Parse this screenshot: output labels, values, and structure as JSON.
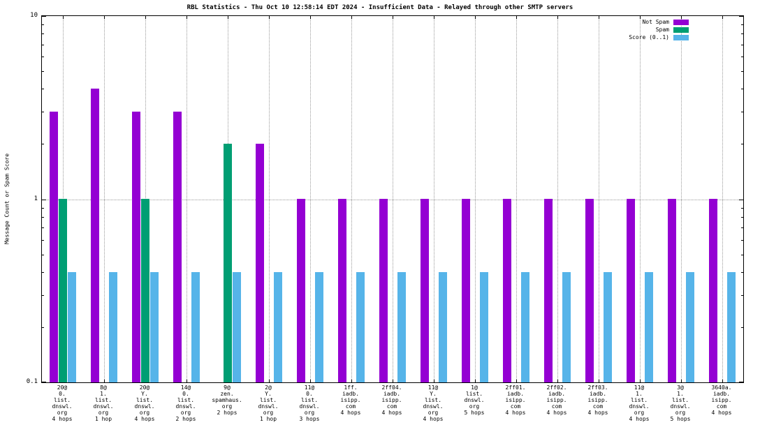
{
  "title": "RBL Statistics - Thu Oct 10 12:58:14 EDT 2024 - Insufficient Data - Relayed through other SMTP servers",
  "ylabel": "Message Count or Spam Score",
  "legend": [
    {
      "label": "Not Spam",
      "color": "#9400d3"
    },
    {
      "label": "Spam",
      "color": "#009e73"
    },
    {
      "label": "Score (0..1)",
      "color": "#56b4e9"
    }
  ],
  "chart_data": {
    "type": "bar",
    "scale": "log",
    "ylim": [
      0.1,
      10
    ],
    "yticks": {
      "top": "10",
      "mid": "1",
      "bottom": "0.1"
    },
    "grid": "dotted",
    "legend_position": "top-right",
    "categories": [
      [
        "20@",
        "0.",
        "list.",
        "dnswl.",
        "org",
        "4 hops"
      ],
      [
        "8@",
        "1.",
        "list.",
        "dnswl.",
        "org",
        "1 hop"
      ],
      [
        "20@",
        "Y.",
        "list.",
        "dnswl.",
        "org",
        "4 hops"
      ],
      [
        "14@",
        "0.",
        "list.",
        "dnswl.",
        "org",
        "2 hops"
      ],
      [
        "9@",
        "zen.",
        "spamhaus.",
        "org",
        "2 hops"
      ],
      [
        "2@",
        "Y.",
        "list.",
        "dnswl.",
        "org",
        "1 hop"
      ],
      [
        "11@",
        "0.",
        "list.",
        "dnswl.",
        "org",
        "3 hops"
      ],
      [
        "1ff.",
        "iadb.",
        "isipp.",
        "com",
        "4 hops"
      ],
      [
        "2ff04.",
        "iadb.",
        "isipp.",
        "com",
        "4 hops"
      ],
      [
        "11@",
        "Y.",
        "list.",
        "dnswl.",
        "org",
        "4 hops"
      ],
      [
        "1@",
        "list.",
        "dnswl.",
        "org",
        "5 hops"
      ],
      [
        "2ff01.",
        "iadb.",
        "isipp.",
        "com",
        "4 hops"
      ],
      [
        "2ff02.",
        "iadb.",
        "isipp.",
        "com",
        "4 hops"
      ],
      [
        "2ff03.",
        "iadb.",
        "isipp.",
        "com",
        "4 hops"
      ],
      [
        "11@",
        "1.",
        "list.",
        "dnswl.",
        "org",
        "4 hops"
      ],
      [
        "3@",
        "1.",
        "list.",
        "dnswl.",
        "org",
        "5 hops"
      ],
      [
        "3640a.",
        "iadb.",
        "isipp.",
        "com",
        "4 hops"
      ]
    ],
    "series": [
      {
        "name": "Not Spam",
        "color": "#9400d3",
        "values": [
          3,
          4,
          3,
          3,
          null,
          2,
          1,
          1,
          1,
          1,
          1,
          1,
          1,
          1,
          1,
          1,
          1
        ]
      },
      {
        "name": "Spam",
        "color": "#009e73",
        "values": [
          1,
          null,
          1,
          null,
          2,
          null,
          null,
          null,
          null,
          null,
          null,
          null,
          null,
          null,
          null,
          null,
          null
        ]
      },
      {
        "name": "Score (0..1)",
        "color": "#56b4e9",
        "values": [
          0.4,
          0.4,
          0.4,
          0.4,
          0.4,
          0.4,
          0.4,
          0.4,
          0.4,
          0.4,
          0.4,
          0.4,
          0.4,
          0.4,
          0.4,
          0.4,
          0.4
        ]
      }
    ]
  }
}
